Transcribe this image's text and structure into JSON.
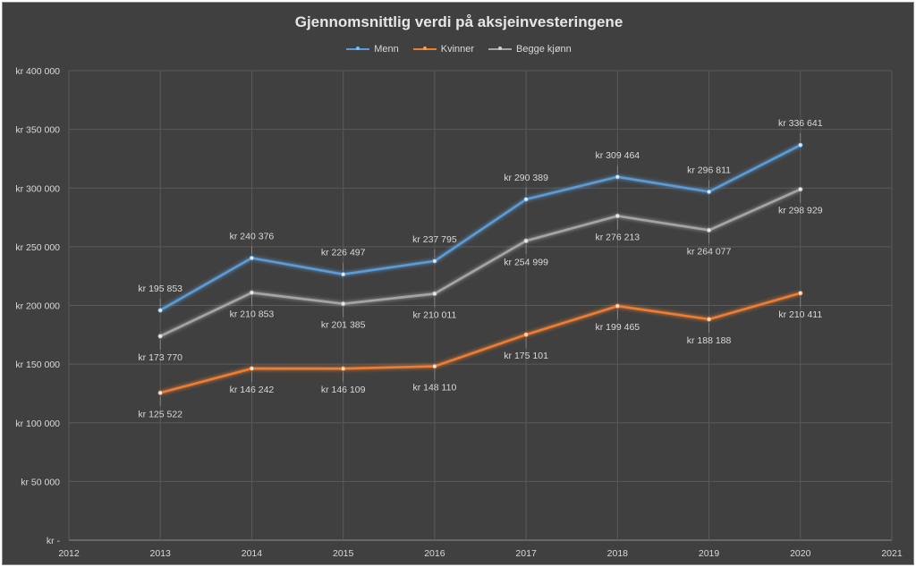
{
  "chart_data": {
    "type": "line",
    "title": "Gjennomsnittlig verdi på aksjeinvesteringene",
    "x": [
      2013,
      2014,
      2015,
      2016,
      2017,
      2018,
      2019,
      2020
    ],
    "xlim": [
      2012,
      2021
    ],
    "x_ticks": [
      "2012",
      "2013",
      "2014",
      "2015",
      "2016",
      "2017",
      "2018",
      "2019",
      "2020",
      "2021"
    ],
    "ylim": [
      0,
      400000
    ],
    "y_ticks": [
      "kr -",
      "kr 50 000",
      "kr 100 000",
      "kr 150 000",
      "kr 200 000",
      "kr 250 000",
      "kr 300 000",
      "kr 350 000",
      "kr 400 000"
    ],
    "grid": true,
    "legend_position": "top",
    "series": [
      {
        "name": "Menn",
        "color": "#5b9bd5",
        "values": [
          195853,
          240376,
          226497,
          237795,
          290389,
          309464,
          296811,
          336641
        ],
        "labels": [
          "kr 195 853",
          "kr 240 376",
          "kr 226 497",
          "kr 237 795",
          "kr 290 389",
          "kr 309 464",
          "kr 296 811",
          "kr 336 641"
        ]
      },
      {
        "name": "Kvinner",
        "color": "#ed7d31",
        "values": [
          125522,
          146242,
          146109,
          148110,
          175101,
          199465,
          188188,
          210411
        ],
        "labels": [
          "kr 125 522",
          "kr 146 242",
          "kr 146 109",
          "kr 148 110",
          "kr 175 101",
          "kr 199 465",
          "kr 188 188",
          "kr 210 411"
        ]
      },
      {
        "name": "Begge kjønn",
        "color": "#a5a5a5",
        "values": [
          173770,
          210853,
          201385,
          210011,
          254999,
          276213,
          264077,
          298929
        ],
        "labels": [
          "kr 173 770",
          "kr 210 853",
          "kr 201 385",
          "kr 210 011",
          "kr 254 999",
          "kr 276 213",
          "kr 264 077",
          "kr 298 929"
        ]
      }
    ]
  }
}
